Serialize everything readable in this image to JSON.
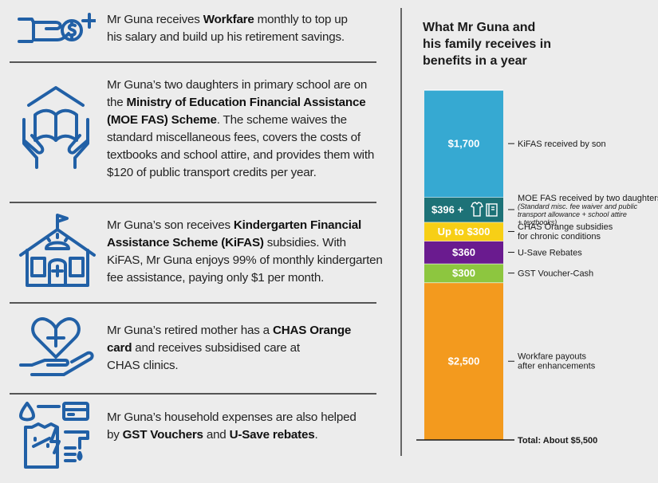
{
  "rows": [
    {
      "icon": "hand-coin-plus-icon",
      "lines": [
        [
          {
            "t": "Mr Guna receives "
          },
          {
            "t": "Workfare",
            "b": true
          },
          {
            "t": " monthly to top up"
          }
        ],
        [
          {
            "t": "his salary and build up his retirement savings."
          }
        ]
      ]
    },
    {
      "icon": "hands-book-icon",
      "lines": [
        [
          {
            "t": "Mr Guna’s two daughters in primary school are on"
          }
        ],
        [
          {
            "t": "the "
          },
          {
            "t": "Ministry of Education Financial Assistance",
            "b": true
          }
        ],
        [
          {
            "t": "(MOE FAS) Scheme",
            "b": true
          },
          {
            "t": ". The scheme waives the"
          }
        ],
        [
          {
            "t": "standard miscellaneous fees, covers the costs of"
          }
        ],
        [
          {
            "t": "textbooks and school attire, and provides them with"
          }
        ],
        [
          {
            "t": "$120 of public transport credits per year."
          }
        ]
      ]
    },
    {
      "icon": "kindergarten-building-icon",
      "lines": [
        [
          {
            "t": "Mr Guna’s son receives "
          },
          {
            "t": "Kindergarten Financial",
            "b": true
          }
        ],
        [
          {
            "t": "Assistance Scheme (KiFAS)",
            "b": true
          },
          {
            "t": " subsidies. With"
          }
        ],
        [
          {
            "t": "KiFAS, Mr Guna enjoys 99% of monthly kindergarten"
          }
        ],
        [
          {
            "t": "fee assistance, paying only $1 per month."
          }
        ]
      ]
    },
    {
      "icon": "heart-cross-hand-icon",
      "lines": [
        [
          {
            "t": "Mr Guna’s retired mother has a "
          },
          {
            "t": "CHAS Orange",
            "b": true
          }
        ],
        [
          {
            "t": "card",
            "b": true
          },
          {
            "t": " and receives subsidised care at"
          }
        ],
        [
          {
            "t": "CHAS clinics."
          }
        ]
      ]
    },
    {
      "icon": "household-bills-icon",
      "lines": [
        [
          {
            "t": "Mr Guna’s household expenses are also helped"
          }
        ],
        [
          {
            "t": "by "
          },
          {
            "t": "GST Vouchers",
            "b": true
          },
          {
            "t": " and "
          },
          {
            "t": "U-Save rebates",
            "b": true
          },
          {
            "t": "."
          }
        ]
      ]
    }
  ],
  "colors": {
    "icon": "#2160a6",
    "divider": "#555555",
    "background": "#ececec"
  },
  "chart_data": {
    "type": "bar",
    "stacked": true,
    "title": "What Mr Guna and his family receives in benefits in a year",
    "title_lines": [
      "What Mr Guna and",
      "his family receives in",
      "benefits in a year"
    ],
    "segments": [
      {
        "name": "Workfare payouts after enhancements",
        "name_lines": [
          "Workfare payouts",
          "after enhancements"
        ],
        "value": 2500,
        "label": "$2,500",
        "color": "#f39a1e"
      },
      {
        "name": "GST Voucher-Cash",
        "name_lines": [
          "GST Voucher-Cash"
        ],
        "value": 300,
        "label": "$300",
        "color": "#8dc63f"
      },
      {
        "name": "U-Save Rebates",
        "name_lines": [
          "U-Save Rebates"
        ],
        "value": 360,
        "label": "$360",
        "color": "#6a1b8f"
      },
      {
        "name": "CHAS Orange subsidies for chronic conditions",
        "name_lines": [
          "CHAS Orange subsidies",
          "for chronic conditions"
        ],
        "value": 300,
        "label": "Up to $300",
        "color": "#f7cf16"
      },
      {
        "name": "MOE FAS received by two daughters",
        "name_lines": [
          "MOE FAS received by two daughters"
        ],
        "sub_lines": [
          "(Standard misc. fee waiver and public",
          "transport allowance + school attire",
          "+ textbooks)"
        ],
        "value": 396,
        "label": "$396 +",
        "extra_icons": [
          "shirt-icon",
          "book-icon"
        ],
        "color": "#1d7277"
      },
      {
        "name": "KiFAS received by son",
        "name_lines": [
          "KiFAS received by son"
        ],
        "value": 1700,
        "label": "$1,700",
        "color": "#36a9d2"
      }
    ],
    "total_label": "Total: About $5,500"
  }
}
